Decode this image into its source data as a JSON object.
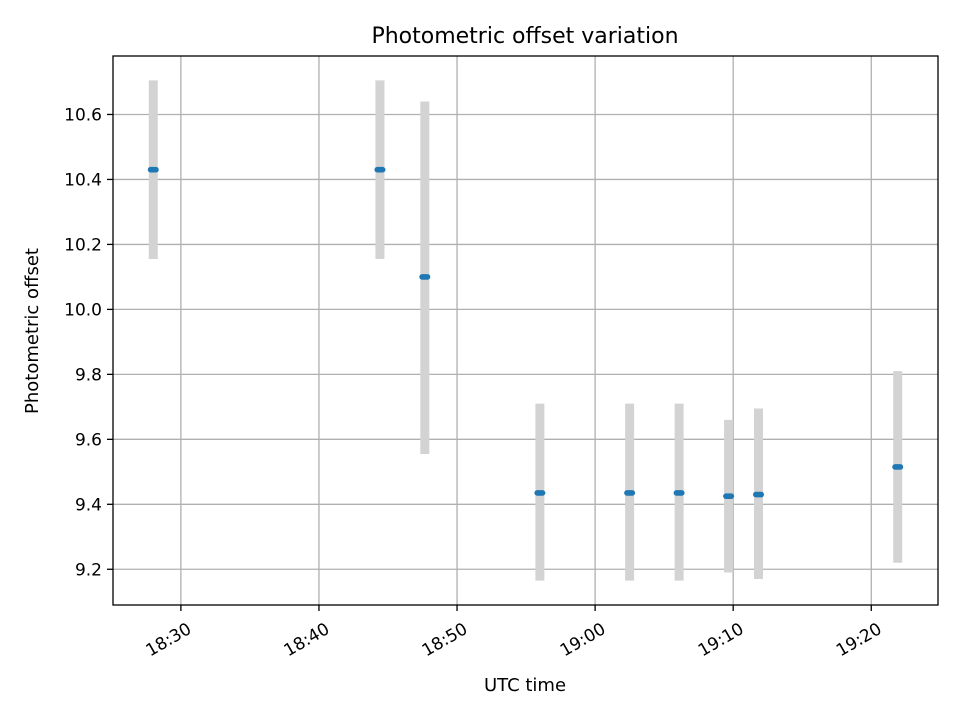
{
  "chart_data": {
    "type": "scatter",
    "title": "Photometric offset variation",
    "xlabel": "UTC time",
    "ylabel": "Photometric offset",
    "x_is_time": true,
    "xlim": [
      "18:25:05",
      "19:24:50"
    ],
    "ylim": [
      9.09,
      10.78
    ],
    "x_ticks": [
      "18:30",
      "18:40",
      "18:50",
      "19:00",
      "19:10",
      "19:20"
    ],
    "y_ticks": [
      9.2,
      9.4,
      9.6,
      9.8,
      10.0,
      10.2,
      10.4,
      10.6
    ],
    "grid": true,
    "colors": {
      "marker": "#1f77b4",
      "errorbar": "#d3d3d3"
    },
    "points": [
      {
        "x": "18:28:00",
        "y": 10.43,
        "y_low": 10.155,
        "y_high": 10.705
      },
      {
        "x": "18:44:25",
        "y": 10.43,
        "y_low": 10.155,
        "y_high": 10.705
      },
      {
        "x": "18:47:40",
        "y": 10.1,
        "y_low": 9.555,
        "y_high": 10.64
      },
      {
        "x": "18:56:00",
        "y": 9.435,
        "y_low": 9.165,
        "y_high": 9.71
      },
      {
        "x": "19:02:30",
        "y": 9.435,
        "y_low": 9.165,
        "y_high": 9.71
      },
      {
        "x": "19:06:05",
        "y": 9.435,
        "y_low": 9.165,
        "y_high": 9.71
      },
      {
        "x": "19:09:40",
        "y": 9.425,
        "y_low": 9.19,
        "y_high": 9.66
      },
      {
        "x": "19:11:50",
        "y": 9.43,
        "y_low": 9.17,
        "y_high": 9.695
      },
      {
        "x": "19:21:55",
        "y": 9.515,
        "y_low": 9.22,
        "y_high": 9.81
      }
    ]
  }
}
